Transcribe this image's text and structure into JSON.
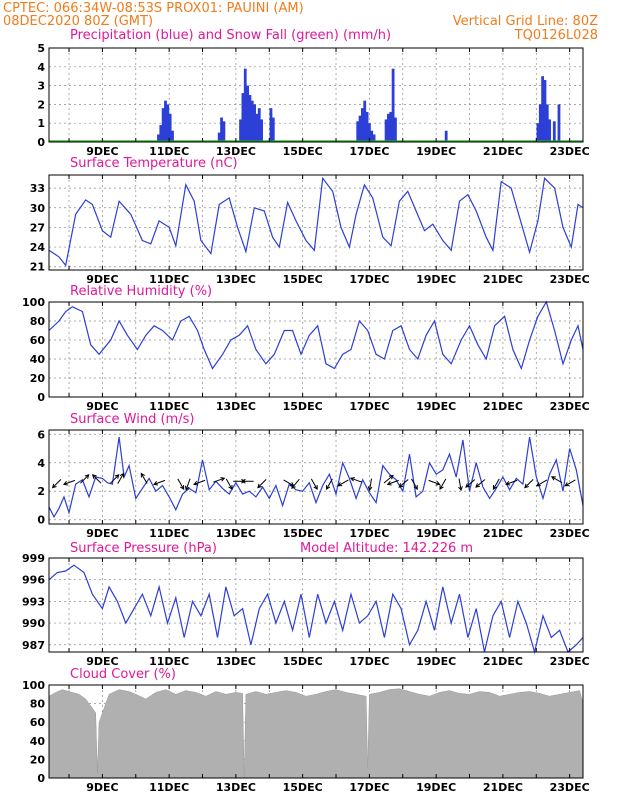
{
  "header": {
    "station": "CPTEC:   066:34W-08:53S   PROX01: PAUINI (AM)",
    "date": "08DEC2020 80Z (GMT)",
    "grid_note": "Vertical Grid Line: 80Z",
    "model_code": "TQ0126L028"
  },
  "colors": {
    "header": "#f07c1c",
    "title": "#e0189a",
    "series": "#2c3fd6",
    "precip_bars": "#2c3fd6",
    "snow_line": "#22a622",
    "cloud_fill": "#b0b0b0",
    "wind_arrows": "#000000"
  },
  "chart_data": [
    {
      "id": "precip",
      "type": "bar",
      "title": "Precipitation (blue) and Snow Fall (green) (mm/h)",
      "ylim": [
        0,
        5
      ],
      "yticks": [
        0,
        1,
        2,
        3,
        4,
        5
      ],
      "xticks": [
        "9DEC",
        "11DEC",
        "13DEC",
        "15DEC",
        "17DEC",
        "19DEC",
        "21DEC",
        "23DEC"
      ],
      "series": [
        {
          "name": "Precipitation",
          "color": "#2c3fd6",
          "x": [
            10.68,
            10.75,
            10.82,
            10.89,
            10.96,
            11.03,
            11.1,
            12.5,
            12.57,
            12.64,
            13.14,
            13.21,
            13.28,
            13.35,
            13.42,
            13.49,
            13.56,
            13.63,
            13.7,
            13.77,
            14.05,
            14.12,
            16.65,
            16.72,
            16.79,
            16.86,
            16.93,
            17.0,
            17.07,
            17.14,
            17.5,
            17.57,
            17.64,
            17.71,
            17.78,
            19.3,
            22.05,
            22.12,
            22.19,
            22.26,
            22.33,
            22.4,
            22.54,
            22.68
          ],
          "values": [
            0.4,
            0.9,
            1.8,
            2.2,
            2.0,
            1.5,
            0.6,
            0.5,
            1.3,
            1.1,
            1.2,
            2.6,
            3.9,
            3.0,
            2.5,
            2.2,
            2.0,
            1.5,
            1.8,
            1.2,
            1.8,
            1.3,
            1.1,
            1.4,
            1.8,
            2.2,
            1.6,
            1.0,
            0.6,
            0.4,
            1.2,
            1.5,
            1.6,
            3.9,
            1.3,
            0.6,
            1.0,
            2.0,
            3.5,
            3.3,
            2.0,
            1.2,
            1.1,
            2.0
          ]
        },
        {
          "name": "Snow Fall",
          "color": "#22a622",
          "x": [
            7.4,
            23.4
          ],
          "values": [
            0,
            0
          ]
        }
      ]
    },
    {
      "id": "temperature",
      "type": "line",
      "title": "Surface Temperature (nC)",
      "ylim": [
        20.5,
        35
      ],
      "yticks": [
        21,
        24,
        27,
        30,
        33
      ],
      "xticks": [
        "9DEC",
        "11DEC",
        "13DEC",
        "15DEC",
        "17DEC",
        "19DEC",
        "21DEC",
        "23DEC"
      ],
      "series": [
        {
          "name": "Temperature",
          "color": "#2c3fd6",
          "x": [
            7.4,
            7.7,
            7.9,
            8.2,
            8.5,
            8.7,
            9.0,
            9.25,
            9.5,
            9.85,
            10.2,
            10.45,
            10.7,
            11.0,
            11.2,
            11.5,
            11.75,
            11.95,
            12.25,
            12.5,
            12.8,
            13.05,
            13.3,
            13.55,
            13.85,
            14.1,
            14.3,
            14.55,
            14.8,
            15.1,
            15.35,
            15.6,
            15.9,
            16.15,
            16.4,
            16.6,
            16.85,
            17.1,
            17.4,
            17.65,
            17.9,
            18.15,
            18.4,
            18.65,
            18.9,
            19.2,
            19.45,
            19.7,
            19.95,
            20.2,
            20.5,
            20.7,
            20.95,
            21.25,
            21.5,
            21.8,
            22.05,
            22.25,
            22.55,
            22.8,
            23.05,
            23.25,
            23.4
          ],
          "values": [
            23.5,
            22.5,
            21.2,
            29.0,
            31.2,
            30.5,
            26.5,
            25.5,
            31.0,
            29.0,
            25.0,
            24.5,
            28.0,
            27.0,
            24.2,
            33.5,
            31.0,
            25.0,
            23.0,
            30.5,
            31.5,
            27.0,
            23.3,
            30.0,
            29.5,
            25.5,
            24.0,
            30.8,
            28.0,
            25.0,
            23.5,
            34.5,
            32.5,
            27.0,
            24.0,
            29.0,
            33.5,
            31.5,
            25.5,
            24.2,
            31.0,
            32.5,
            29.5,
            26.5,
            27.5,
            25.0,
            23.5,
            31.0,
            32.0,
            29.5,
            25.5,
            23.5,
            34.0,
            33.0,
            28.5,
            23.2,
            28.0,
            34.5,
            33.0,
            27.0,
            24.0,
            30.5,
            30.0
          ]
        }
      ]
    },
    {
      "id": "humidity",
      "type": "line",
      "title": "Relative Humidity (%)",
      "ylim": [
        0,
        100
      ],
      "yticks": [
        0,
        20,
        40,
        60,
        80,
        100
      ],
      "xticks": [
        "9DEC",
        "11DEC",
        "13DEC",
        "15DEC",
        "17DEC",
        "19DEC",
        "21DEC",
        "23DEC"
      ],
      "series": [
        {
          "name": "Relative Humidity",
          "color": "#2c3fd6",
          "x": [
            7.4,
            7.7,
            7.9,
            8.1,
            8.4,
            8.65,
            8.9,
            9.25,
            9.5,
            9.75,
            10.05,
            10.3,
            10.55,
            10.8,
            11.1,
            11.35,
            11.6,
            11.85,
            12.05,
            12.3,
            12.6,
            12.85,
            13.1,
            13.35,
            13.6,
            13.9,
            14.15,
            14.45,
            14.7,
            14.95,
            15.2,
            15.45,
            15.7,
            15.95,
            16.2,
            16.45,
            16.7,
            16.95,
            17.2,
            17.45,
            17.7,
            17.95,
            18.2,
            18.45,
            18.7,
            18.95,
            19.2,
            19.45,
            19.75,
            20.0,
            20.25,
            20.5,
            20.75,
            21.05,
            21.3,
            21.55,
            21.8,
            22.05,
            22.3,
            22.55,
            22.8,
            23.05,
            23.25,
            23.4
          ],
          "values": [
            70,
            80,
            90,
            95,
            90,
            55,
            45,
            60,
            80,
            65,
            50,
            65,
            75,
            70,
            60,
            80,
            85,
            70,
            50,
            30,
            45,
            60,
            65,
            75,
            50,
            35,
            45,
            70,
            70,
            45,
            65,
            75,
            35,
            30,
            45,
            50,
            80,
            70,
            45,
            40,
            70,
            75,
            50,
            40,
            65,
            80,
            45,
            35,
            60,
            75,
            55,
            40,
            75,
            85,
            50,
            30,
            60,
            85,
            100,
            70,
            35,
            60,
            75,
            50
          ]
        }
      ]
    },
    {
      "id": "wind",
      "type": "line",
      "title": "Surface Wind (m/s)",
      "ylim": [
        -0.3,
        6.3
      ],
      "yticks": [
        0,
        2,
        4,
        6
      ],
      "xticks": [
        "9DEC",
        "11DEC",
        "13DEC",
        "15DEC",
        "17DEC",
        "19DEC",
        "21DEC",
        "23DEC"
      ],
      "series": [
        {
          "name": "Wind speed",
          "color": "#2c3fd6",
          "x": [
            7.4,
            7.55,
            7.7,
            7.85,
            8.0,
            8.2,
            8.4,
            8.6,
            8.8,
            9.0,
            9.15,
            9.3,
            9.5,
            9.65,
            9.8,
            10.0,
            10.2,
            10.4,
            10.6,
            10.8,
            11.0,
            11.2,
            11.4,
            11.6,
            11.8,
            12.0,
            12.2,
            12.4,
            12.6,
            12.8,
            13.0,
            13.2,
            13.4,
            13.6,
            13.8,
            14.0,
            14.2,
            14.4,
            14.6,
            14.8,
            15.0,
            15.2,
            15.4,
            15.6,
            15.8,
            16.0,
            16.2,
            16.4,
            16.6,
            16.8,
            17.0,
            17.2,
            17.4,
            17.6,
            17.8,
            18.0,
            18.2,
            18.4,
            18.6,
            18.8,
            19.0,
            19.2,
            19.4,
            19.6,
            19.8,
            20.0,
            20.2,
            20.4,
            20.6,
            20.8,
            21.0,
            21.2,
            21.4,
            21.6,
            21.8,
            22.0,
            22.2,
            22.4,
            22.6,
            22.8,
            23.0,
            23.2,
            23.4
          ],
          "values": [
            0.9,
            0.2,
            0.8,
            1.6,
            0.5,
            2.5,
            2.8,
            1.6,
            3.0,
            2.9,
            2.6,
            2.5,
            5.8,
            3.0,
            3.8,
            1.5,
            2.2,
            2.9,
            2.0,
            2.4,
            1.6,
            0.7,
            1.8,
            2.2,
            1.9,
            4.2,
            2.1,
            2.7,
            2.2,
            1.8,
            2.6,
            1.8,
            2.0,
            1.6,
            2.3,
            1.5,
            2.4,
            1.0,
            2.5,
            2.1,
            2.0,
            2.6,
            1.2,
            2.4,
            3.2,
            1.8,
            4.0,
            2.9,
            1.5,
            2.8,
            1.9,
            1.2,
            3.8,
            3.2,
            2.8,
            2.0,
            4.6,
            1.6,
            2.0,
            4.0,
            3.2,
            3.5,
            4.6,
            3.0,
            5.6,
            2.0,
            4.0,
            2.3,
            1.5,
            2.2,
            3.0,
            2.1,
            2.9,
            2.5,
            5.8,
            3.0,
            1.5,
            3.2,
            4.2,
            2.0,
            5.0,
            3.5,
            1.0
          ]
        }
      ],
      "wind_vectors": {
        "color": "#000000",
        "x": [
          7.7,
          8.1,
          8.4,
          8.9,
          9.3,
          9.5,
          10.3,
          10.8,
          11.3,
          11.6,
          12.0,
          12.4,
          12.75,
          13.0,
          13.45,
          13.85,
          14.5,
          14.85,
          15.3,
          15.85,
          16.3,
          16.7,
          17.05,
          17.5,
          17.8,
          18.1,
          18.3,
          18.85,
          19.25,
          19.7,
          20.1,
          20.4,
          20.85,
          21.35,
          21.85,
          22.25,
          22.7,
          23.1
        ],
        "angle_deg": [
          225,
          200,
          45,
          135,
          45,
          60,
          120,
          200,
          300,
          250,
          200,
          20,
          300,
          0,
          180,
          225,
          330,
          230,
          300,
          240,
          210,
          160,
          260,
          40,
          200,
          220,
          300,
          340,
          240,
          280,
          220,
          220,
          240,
          200,
          225,
          210,
          150,
          210
        ]
      }
    },
    {
      "id": "pressure",
      "type": "line",
      "title": "Surface Pressure (hPa)",
      "annotation": "Model Altitude: 142.226 m",
      "ylim": [
        986,
        999
      ],
      "yticks": [
        987,
        990,
        993,
        996,
        999
      ],
      "xticks": [
        "9DEC",
        "11DEC",
        "13DEC",
        "15DEC",
        "17DEC",
        "19DEC",
        "21DEC",
        "23DEC"
      ],
      "series": [
        {
          "name": "Surface Pressure",
          "color": "#2c3fd6",
          "x": [
            7.4,
            7.65,
            7.9,
            8.15,
            8.45,
            8.7,
            9.0,
            9.2,
            9.45,
            9.7,
            9.95,
            10.2,
            10.45,
            10.7,
            10.95,
            11.2,
            11.45,
            11.7,
            11.95,
            12.2,
            12.45,
            12.7,
            12.95,
            13.2,
            13.45,
            13.7,
            13.95,
            14.2,
            14.45,
            14.7,
            14.95,
            15.2,
            15.45,
            15.7,
            15.95,
            16.2,
            16.45,
            16.7,
            16.95,
            17.2,
            17.45,
            17.7,
            17.95,
            18.2,
            18.45,
            18.7,
            18.95,
            19.2,
            19.45,
            19.7,
            19.95,
            20.2,
            20.45,
            20.7,
            20.95,
            21.2,
            21.45,
            21.7,
            21.95,
            22.2,
            22.45,
            22.7,
            22.95,
            23.2,
            23.4
          ],
          "values": [
            996,
            997,
            997.2,
            998,
            997,
            994,
            992,
            995,
            993,
            990,
            992,
            994,
            991,
            995,
            990,
            993.5,
            988,
            993,
            991,
            994,
            988,
            995,
            991,
            992,
            987,
            992,
            994,
            990,
            993,
            989,
            994,
            988,
            994,
            990,
            993,
            989,
            994,
            990,
            991,
            993,
            988,
            994,
            992,
            987,
            989,
            993,
            989,
            995,
            990,
            994,
            988,
            992,
            986,
            991,
            993,
            988,
            993,
            990,
            986,
            991,
            988,
            989,
            986,
            987,
            988
          ]
        }
      ]
    },
    {
      "id": "cloud",
      "type": "area",
      "title": "Cloud Cover (%)",
      "ylim": [
        0,
        100
      ],
      "yticks": [
        0,
        20,
        40,
        60,
        80,
        100
      ],
      "xticks": [
        "9DEC",
        "11DEC",
        "13DEC",
        "15DEC",
        "17DEC",
        "19DEC",
        "21DEC",
        "23DEC"
      ],
      "series": [
        {
          "name": "Cloud Cover",
          "color": "#b0b0b0",
          "x": [
            7.4,
            7.6,
            7.8,
            8.0,
            8.3,
            8.5,
            8.8,
            8.85,
            8.9,
            9.2,
            9.5,
            9.8,
            10.0,
            10.3,
            10.6,
            10.9,
            11.2,
            11.5,
            11.8,
            12.1,
            12.4,
            12.7,
            13.0,
            13.2,
            13.25,
            13.3,
            13.6,
            13.9,
            14.2,
            14.5,
            14.8,
            15.1,
            15.4,
            15.7,
            16.0,
            16.3,
            16.6,
            16.9,
            16.95,
            17.0,
            17.3,
            17.6,
            17.9,
            18.2,
            18.5,
            18.8,
            19.1,
            19.4,
            19.7,
            20.0,
            20.3,
            20.6,
            20.9,
            21.2,
            21.5,
            21.8,
            22.1,
            22.4,
            22.7,
            23.0,
            23.3,
            23.4
          ],
          "values": [
            88,
            92,
            95,
            93,
            90,
            85,
            70,
            5,
            60,
            90,
            95,
            93,
            90,
            85,
            92,
            95,
            90,
            94,
            92,
            88,
            93,
            90,
            92,
            91,
            0,
            90,
            93,
            90,
            92,
            94,
            92,
            88,
            90,
            93,
            95,
            92,
            90,
            88,
            10,
            90,
            92,
            95,
            96,
            93,
            90,
            88,
            92,
            94,
            91,
            90,
            93,
            92,
            88,
            90,
            92,
            93,
            91,
            88,
            90,
            92,
            94,
            80
          ]
        }
      ]
    }
  ]
}
